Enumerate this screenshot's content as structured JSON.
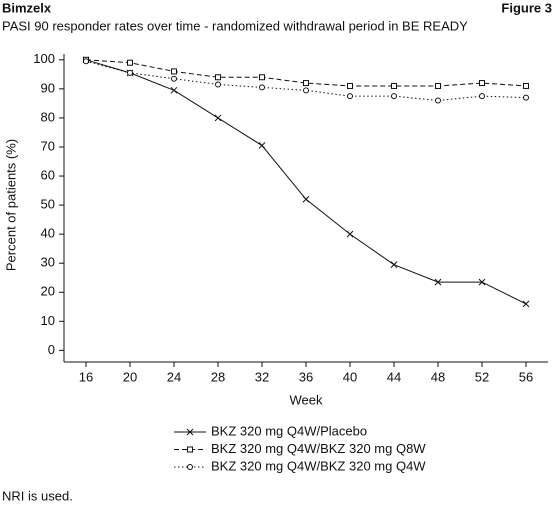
{
  "header": {
    "title": "Bimzelx",
    "figure": "Figure 3"
  },
  "chart_data": {
    "type": "line",
    "title": "PASI 90 responder rates over time - randomized withdrawal period in BE READY",
    "x_label": "Week",
    "y_label": "Percent of patients (%)",
    "x": [
      16,
      20,
      24,
      28,
      32,
      36,
      40,
      44,
      48,
      52,
      56
    ],
    "xlim": [
      14,
      58
    ],
    "xticks": [
      16,
      20,
      24,
      28,
      32,
      36,
      40,
      44,
      48,
      52,
      56
    ],
    "ylim": [
      -4,
      102
    ],
    "yticks": [
      0,
      10,
      20,
      30,
      40,
      50,
      60,
      70,
      80,
      90,
      100
    ],
    "series": [
      {
        "name": "BKZ 320 mg Q4W/Placebo",
        "color": "#111111",
        "dash": "none",
        "marker": "x",
        "values": [
          100,
          95.5,
          89.5,
          80,
          70.5,
          52,
          40,
          29.5,
          23.5,
          23.5,
          16
        ]
      },
      {
        "name": "BKZ 320 mg Q4W/BKZ 320 mg Q8W",
        "color": "#111111",
        "dash": "5,3",
        "marker": "square",
        "values": [
          100,
          99,
          96,
          94,
          94,
          92,
          91,
          91,
          91,
          92,
          91
        ]
      },
      {
        "name": "BKZ 320 mg Q4W/BKZ 320 mg Q4W",
        "color": "#111111",
        "dash": "1.5,2.5",
        "marker": "circle",
        "values": [
          99.5,
          95.5,
          93.5,
          91.5,
          90.5,
          89.5,
          87.5,
          87.5,
          86,
          87.5,
          87
        ]
      }
    ]
  },
  "footnote": "NRI is used."
}
